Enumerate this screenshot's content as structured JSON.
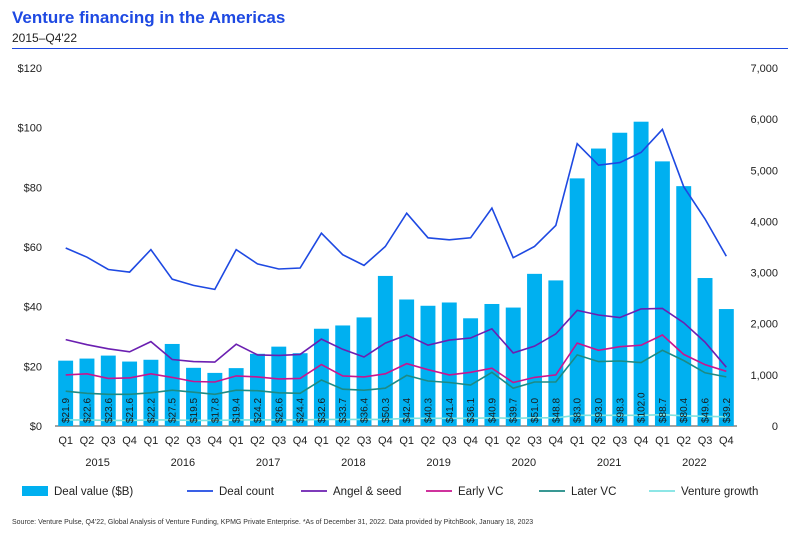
{
  "header": {
    "title": "Venture financing in the Americas",
    "subtitle": "2015–Q4'22"
  },
  "chart_data": {
    "type": "bar",
    "quarters": [
      "Q1",
      "Q2",
      "Q3",
      "Q4",
      "Q1",
      "Q2",
      "Q3",
      "Q4",
      "Q1",
      "Q2",
      "Q3",
      "Q4",
      "Q1",
      "Q2",
      "Q3",
      "Q4",
      "Q1",
      "Q2",
      "Q3",
      "Q4",
      "Q1",
      "Q2",
      "Q3",
      "Q4",
      "Q1",
      "Q2",
      "Q3",
      "Q4",
      "Q1",
      "Q2",
      "Q3",
      "Q4"
    ],
    "years": [
      "2015",
      "2016",
      "2017",
      "2018",
      "2019",
      "2020",
      "2021",
      "2022"
    ],
    "left_axis": {
      "ticks": [
        "$0",
        "$20",
        "$40",
        "$60",
        "$80",
        "$100",
        "$120"
      ],
      "ylim": [
        0,
        120
      ]
    },
    "right_axis": {
      "ticks": [
        "0",
        "1,000",
        "2,000",
        "3,000",
        "4,000",
        "5,000",
        "6,000",
        "7,000"
      ],
      "ylim": [
        0,
        7000
      ]
    },
    "deal_value": {
      "name": "Deal value ($B)",
      "values": [
        21.9,
        22.6,
        23.6,
        21.6,
        22.2,
        27.5,
        19.5,
        17.8,
        19.4,
        24.2,
        26.6,
        24.4,
        32.6,
        33.7,
        36.4,
        50.3,
        42.4,
        40.3,
        41.4,
        36.1,
        40.9,
        39.7,
        51.0,
        48.8,
        83.0,
        93.0,
        98.3,
        102.0,
        88.7,
        80.4,
        49.6,
        39.2
      ],
      "labels": [
        "$21.9",
        "$22.6",
        "$23.6",
        "$21.6",
        "$22.2",
        "$27.5",
        "$19.5",
        "$17.8",
        "$19.4",
        "$24.2",
        "$26.6",
        "$24.4",
        "$32.6",
        "$33.7",
        "$36.4",
        "$50.3",
        "$42.4",
        "$40.3",
        "$41.4",
        "$36.1",
        "$40.9",
        "$39.7",
        "$51.0",
        "$48.8",
        "$83.0",
        "$93.0",
        "$98.3",
        "$102.0",
        "$88.7",
        "$80.4",
        "$49.6",
        "$39.2"
      ]
    },
    "series": [
      {
        "name": "Deal count",
        "color": "#1e49e2",
        "values": [
          3480,
          3300,
          3060,
          3010,
          3450,
          2870,
          2750,
          2670,
          3450,
          3170,
          3070,
          3090,
          3770,
          3350,
          3140,
          3510,
          4160,
          3680,
          3640,
          3680,
          4260,
          3290,
          3510,
          3920,
          5520,
          5100,
          5150,
          5350,
          5800,
          4680,
          4050,
          3320
        ]
      },
      {
        "name": "Angel & seed",
        "color": "#6b1fb1",
        "values": [
          1690,
          1590,
          1510,
          1450,
          1650,
          1300,
          1260,
          1250,
          1600,
          1390,
          1380,
          1400,
          1700,
          1500,
          1350,
          1620,
          1780,
          1580,
          1680,
          1720,
          1900,
          1430,
          1560,
          1800,
          2260,
          2170,
          2120,
          2290,
          2300,
          2020,
          1640,
          1150
        ]
      },
      {
        "name": "Early VC",
        "color": "#c8158f",
        "values": [
          1000,
          1020,
          930,
          940,
          1020,
          950,
          870,
          860,
          980,
          960,
          920,
          930,
          1200,
          980,
          960,
          1020,
          1220,
          1100,
          1000,
          1050,
          1130,
          850,
          950,
          1000,
          1620,
          1480,
          1550,
          1580,
          1780,
          1400,
          1200,
          1070
        ]
      },
      {
        "name": "Later VC",
        "color": "#1d8a84",
        "values": [
          680,
          640,
          620,
          620,
          650,
          700,
          660,
          620,
          700,
          690,
          650,
          640,
          900,
          720,
          700,
          740,
          990,
          880,
          850,
          800,
          1050,
          740,
          860,
          860,
          1390,
          1260,
          1270,
          1240,
          1480,
          1280,
          1040,
          960
        ]
      },
      {
        "name": "Venture growth",
        "color": "#7de3e3",
        "values": [
          120,
          120,
          110,
          110,
          120,
          120,
          110,
          110,
          120,
          120,
          120,
          120,
          130,
          130,
          130,
          130,
          150,
          150,
          150,
          150,
          160,
          150,
          160,
          160,
          210,
          210,
          210,
          210,
          220,
          200,
          190,
          180
        ]
      }
    ]
  },
  "source_note": "Source: Venture Pulse, Q4'22, Global Analysis of Venture Funding, KPMG Private Enterprise. *As of December 31, 2022. Data provided by PitchBook, January 18, 2023"
}
